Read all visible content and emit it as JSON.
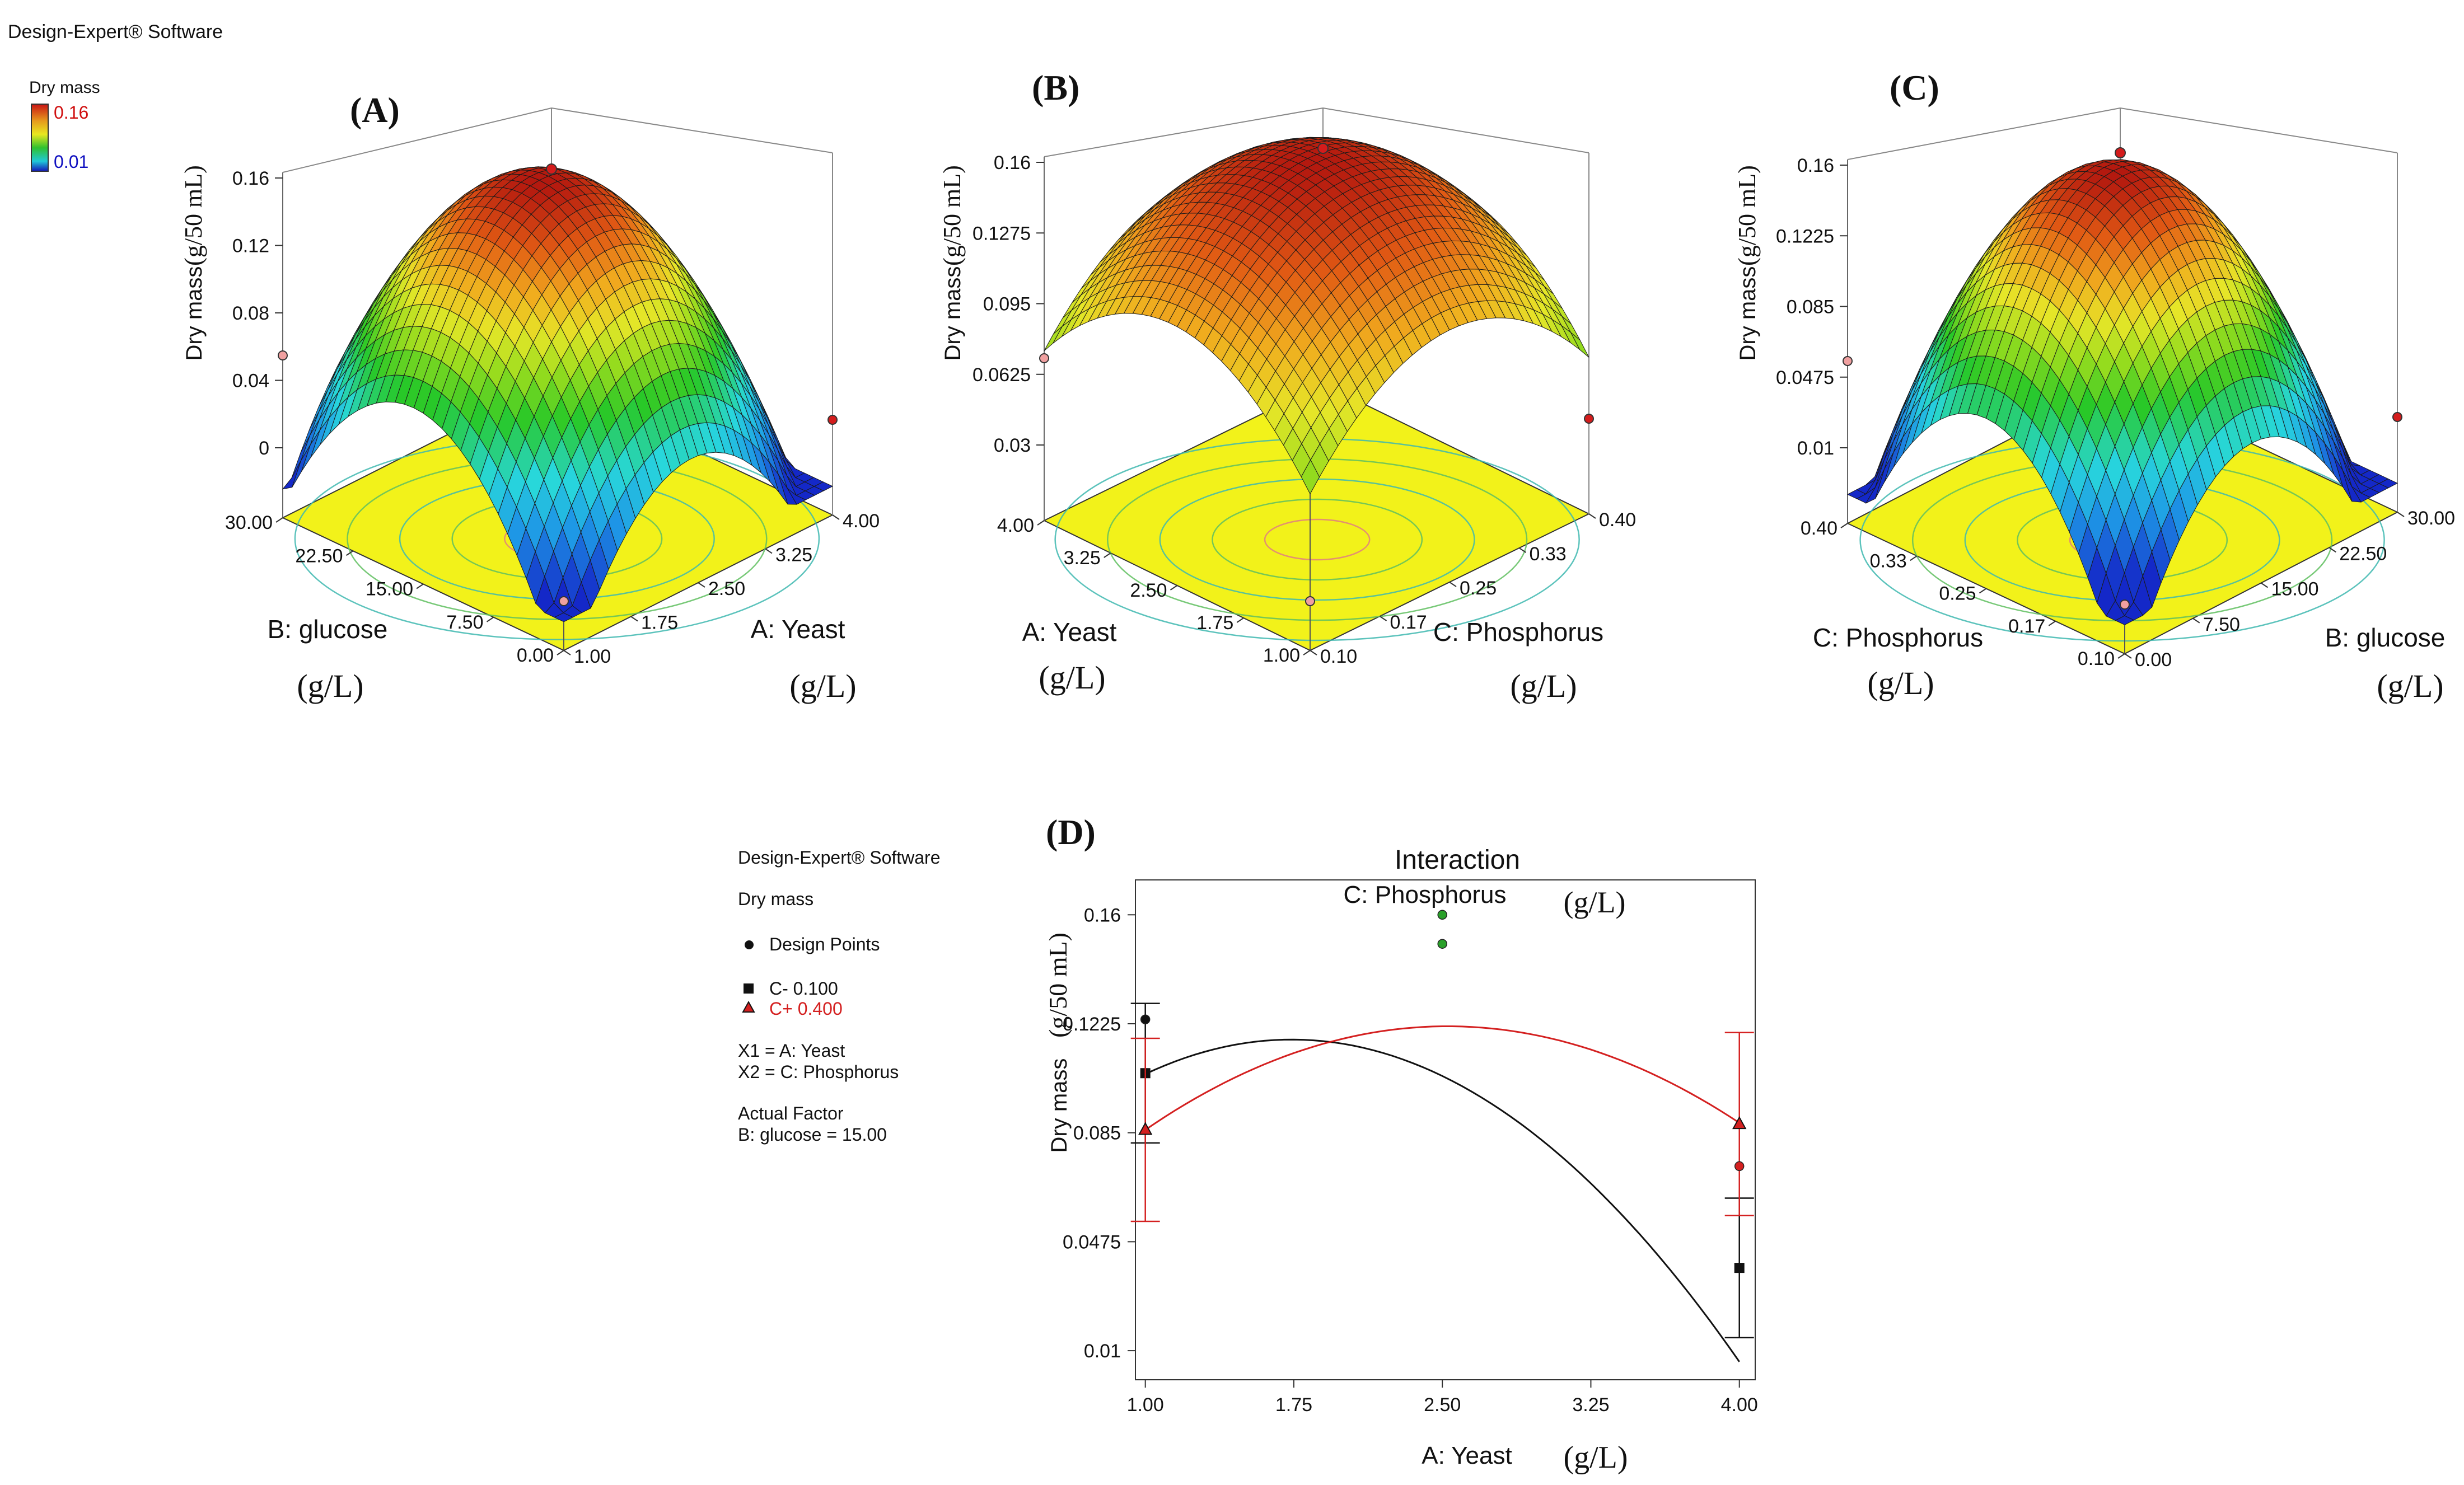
{
  "software_label": "Design-Expert® Software",
  "legend_3d": {
    "title": "Dry mass",
    "high": "0.16",
    "low": "0.01",
    "high_color": "#d01010",
    "low_color": "#1010c0"
  },
  "chart_data": [
    {
      "panel": "(A)",
      "type": "surface",
      "zlabel": "Dry mass",
      "zunit": "(g/50 mL)",
      "zticks": [
        "0.16",
        "0.12",
        "0.08",
        "0.04",
        "0"
      ],
      "left_axis": {
        "label": "B: glucose",
        "unit": "(g/L)",
        "ticks": [
          "30.00",
          "22.50",
          "15.00",
          "7.50",
          "0.00"
        ]
      },
      "right_axis": {
        "label": "A: Yeast",
        "unit": "(g/L)",
        "ticks": [
          "1.00",
          "1.75",
          "2.50",
          "3.25",
          "4.00"
        ]
      }
    },
    {
      "panel": "(B)",
      "type": "surface",
      "zlabel": "Dry mass",
      "zunit": "(g/50 mL)",
      "zticks": [
        "0.16",
        "0.1275",
        "0.095",
        "0.0625",
        "0.03"
      ],
      "left_axis": {
        "label": "A: Yeast",
        "unit": "(g/L)",
        "ticks": [
          "4.00",
          "3.25",
          "2.50",
          "1.75",
          "1.00"
        ]
      },
      "right_axis": {
        "label": "C: Phosphorus",
        "unit": "(g/L)",
        "ticks": [
          "0.10",
          "0.17",
          "0.25",
          "0.33",
          "0.40"
        ]
      }
    },
    {
      "panel": "(C)",
      "type": "surface",
      "zlabel": "Dry mass",
      "zunit": "(g/50 mL)",
      "zticks": [
        "0.16",
        "0.1225",
        "0.085",
        "0.0475",
        "0.01"
      ],
      "left_axis": {
        "label": "C: Phosphorus",
        "unit": "(g/L)",
        "ticks": [
          "0.40",
          "0.33",
          "0.25",
          "0.17",
          "0.10"
        ]
      },
      "right_axis": {
        "label": "B: glucose",
        "unit": "(g/L)",
        "ticks": [
          "0.00",
          "7.50",
          "15.00",
          "22.50",
          "30.00"
        ]
      }
    },
    {
      "panel": "(D)",
      "type": "line",
      "title": "Interaction",
      "subtitle": "C: Phosphorus",
      "subtitle_unit": "(g/L)",
      "xlabel": "A: Yeast",
      "xunit": "(g/L)",
      "ylabel": "Dry mass",
      "yunit": "(g/50 mL)",
      "xlim": [
        0.95,
        4.08
      ],
      "ylim": [
        0.0,
        0.172
      ],
      "xticks": [
        1.0,
        1.75,
        2.5,
        3.25,
        4.0
      ],
      "xtick_labels": [
        "1.00",
        "1.75",
        "2.50",
        "3.25",
        "4.00"
      ],
      "yticks": [
        0.01,
        0.0475,
        0.085,
        0.1225,
        0.16
      ],
      "ytick_labels": [
        "0.01",
        "0.0475",
        "0.085",
        "0.1225",
        "0.16"
      ],
      "series": [
        {
          "name": "C- 0.100",
          "color": "#111111",
          "marker": "square",
          "curve": {
            "c0": 0.0514,
            "c1": 0.0755,
            "c2": -0.0217
          },
          "endpoints": [
            {
              "x": 1.0,
              "y": 0.1055,
              "lo": 0.0815,
              "hi": 0.1295
            },
            {
              "x": 4.0,
              "y": 0.0385,
              "lo": 0.0145,
              "hi": 0.0625
            }
          ]
        },
        {
          "name": "C+ 0.400",
          "color": "#d42020",
          "marker": "triangle",
          "curve": {
            "c0": 0.024,
            "c1": 0.0773,
            "c2": -0.0153
          },
          "endpoints": [
            {
              "x": 1.0,
              "y": 0.086,
              "lo": 0.0545,
              "hi": 0.1175
            },
            {
              "x": 4.0,
              "y": 0.088,
              "lo": 0.0565,
              "hi": 0.1195
            }
          ]
        }
      ],
      "design_points": [
        {
          "x": 1.0,
          "y": 0.124,
          "color": "#111111"
        },
        {
          "x": 2.5,
          "y": 0.16,
          "color": "#2aa02a"
        },
        {
          "x": 2.5,
          "y": 0.15,
          "color": "#2aa02a"
        },
        {
          "x": 4.0,
          "y": 0.0735,
          "color": "#d42020"
        }
      ]
    }
  ],
  "legend_2d": {
    "software": "Design-Expert® Software",
    "response": "Dry mass",
    "design_points": "Design Points",
    "c_minus": "C- 0.100",
    "c_plus": "C+ 0.400",
    "x1": "X1 = A: Yeast",
    "x2": "X2 = C: Phosphorus",
    "actual_factor": "Actual Factor",
    "actual_factor_value": "B: glucose = 15.00",
    "c_plus_color": "#d42020"
  }
}
